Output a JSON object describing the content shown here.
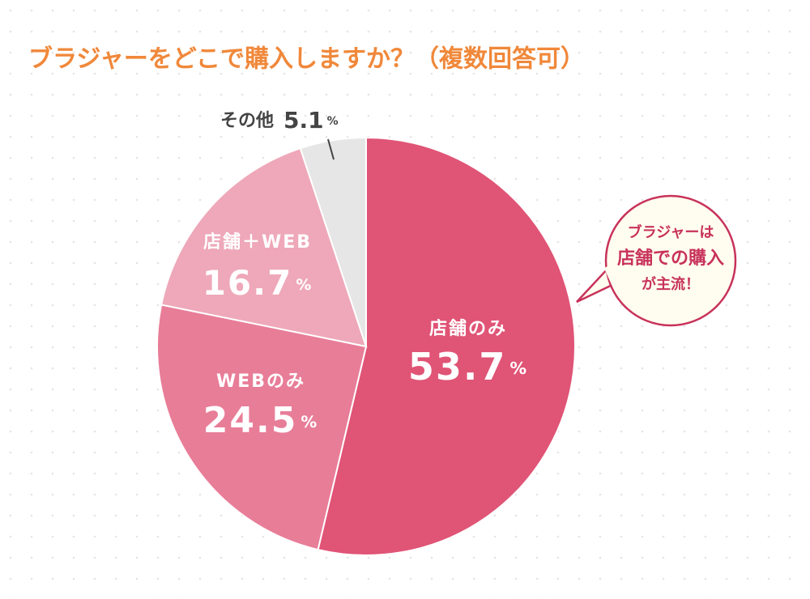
{
  "chart_data": {
    "type": "pie",
    "title": "ブラジャーをどこで購入しますか？（複数回答可）",
    "categories": [
      "店舗のみ",
      "WEBのみ",
      "店舗＋WEB",
      "その他"
    ],
    "values": [
      53.7,
      24.5,
      16.7,
      5.1
    ],
    "value_labels": [
      "53.7%",
      "24.5%",
      "16.7%",
      "5.1%"
    ],
    "colors": [
      "#e05476",
      "#e87d98",
      "#eea8b9",
      "#e6e6e6"
    ],
    "annotation": [
      "ブラジャーは",
      "店舗での購入",
      "が主流！"
    ]
  }
}
